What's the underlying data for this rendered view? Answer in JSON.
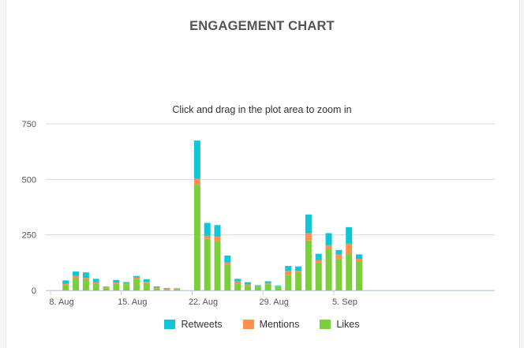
{
  "chart_data": {
    "type": "bar",
    "stacked": true,
    "title": "ENGAGEMENT CHART",
    "subtitle": "Click and drag in the plot area to zoom in",
    "ylim": [
      0,
      750
    ],
    "yticks": [
      "0",
      "250",
      "500",
      "750"
    ],
    "ytick_values": [
      0,
      250,
      500,
      750
    ],
    "xtick_labels": [
      "8. Aug",
      "15. Aug",
      "22. Aug",
      "29. Aug",
      "5. Sep"
    ],
    "xtick_days": [
      0,
      7,
      14,
      21,
      28
    ],
    "grid": true,
    "legend_position": "bottom",
    "x_days": [
      0,
      1,
      2,
      3,
      4,
      5,
      6,
      7,
      8,
      9,
      10,
      11,
      12,
      13,
      14,
      15,
      16,
      17,
      18,
      19,
      20,
      21,
      22,
      23,
      24,
      25,
      26,
      27,
      28,
      29,
      30,
      31
    ],
    "series": [
      {
        "name": "Likes",
        "color": "#7ccf3b",
        "values": [
          0,
          25,
          55,
          48,
          30,
          12,
          30,
          28,
          52,
          33,
          10,
          5,
          6,
          0,
          475,
          232,
          222,
          115,
          30,
          20,
          15,
          28,
          15,
          70,
          80,
          225,
          125,
          185,
          140,
          165,
          130,
          0
        ]
      },
      {
        "name": "Mentions",
        "color": "#ff8f4f",
        "values": [
          0,
          5,
          10,
          8,
          7,
          2,
          5,
          5,
          6,
          5,
          3,
          4,
          2,
          0,
          28,
          14,
          20,
          10,
          10,
          7,
          4,
          5,
          3,
          18,
          8,
          32,
          12,
          18,
          22,
          45,
          12,
          0
        ]
      },
      {
        "name": "Retweets",
        "color": "#0fc6d6",
        "values": [
          0,
          15,
          20,
          25,
          15,
          3,
          12,
          5,
          7,
          12,
          5,
          2,
          2,
          0,
          172,
          58,
          52,
          32,
          12,
          10,
          4,
          8,
          3,
          22,
          20,
          85,
          28,
          55,
          20,
          75,
          20,
          0
        ]
      }
    ]
  },
  "legend_order": [
    "Retweets",
    "Mentions",
    "Likes"
  ]
}
